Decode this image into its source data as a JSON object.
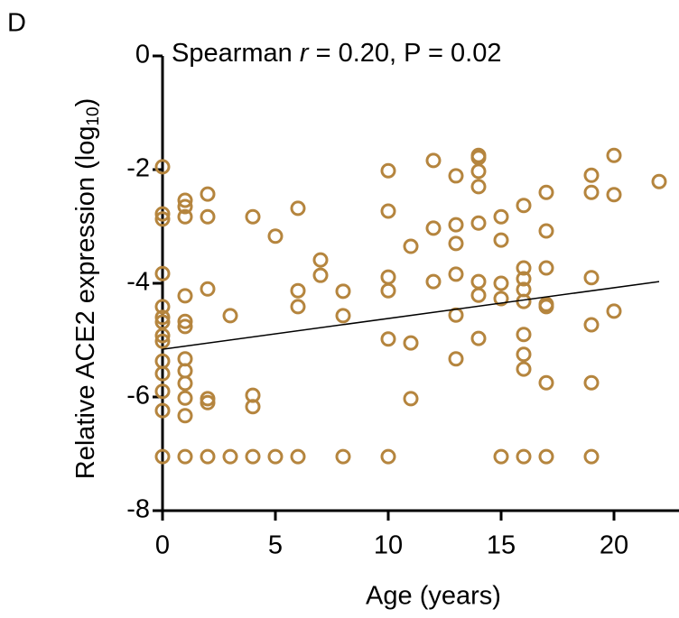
{
  "chart_data": {
    "type": "scatter",
    "panel_label": "D",
    "annotation": {
      "prefix": "Spearman ",
      "stat": "r",
      "suffix": " = 0.20, P = 0.02"
    },
    "y_label": {
      "text": "Relative ACE2 expression (log",
      "sub": "10",
      "close": ")"
    },
    "x_label": "Age (years)",
    "xlim": [
      0,
      22.9
    ],
    "ylim": [
      -8,
      0
    ],
    "xticks": [
      0,
      5,
      10,
      15,
      20
    ],
    "yticks": [
      -8,
      -6,
      -4,
      -2,
      0
    ],
    "color": "#b5853e",
    "series": [
      {
        "x": [
          0,
          0,
          0,
          0,
          0,
          0,
          0,
          0,
          0,
          0,
          0,
          0,
          0,
          0,
          1,
          1,
          1,
          1,
          1,
          1,
          1,
          1,
          1,
          1,
          1,
          1,
          2,
          2,
          2,
          2,
          2,
          2,
          3,
          3,
          4,
          4,
          4,
          4,
          5,
          5,
          6,
          6,
          6,
          6,
          7,
          7,
          8,
          8,
          8,
          10,
          10,
          10,
          10,
          10,
          10,
          11,
          11,
          11,
          12,
          12,
          12,
          13,
          13,
          13,
          13,
          13,
          13,
          14,
          14,
          14,
          14,
          14,
          14,
          14,
          14,
          15,
          15,
          15,
          15,
          15,
          16,
          16,
          16,
          16,
          16,
          16,
          16,
          16,
          16,
          17,
          17,
          17,
          17,
          17,
          17,
          17,
          19,
          19,
          19,
          19,
          19,
          19,
          20,
          20,
          20,
          22
        ],
        "y": [
          -1.95,
          -2.78,
          -2.87,
          -3.83,
          -4.41,
          -4.6,
          -4.68,
          -4.92,
          -5.02,
          -5.37,
          -5.59,
          -5.9,
          -6.24,
          -7.05,
          -2.54,
          -2.65,
          -2.83,
          -4.22,
          -4.67,
          -4.76,
          -5.33,
          -5.54,
          -5.76,
          -6.02,
          -6.33,
          -7.05,
          -2.43,
          -2.83,
          -4.1,
          -6.03,
          -6.1,
          -7.05,
          -4.57,
          -7.05,
          -2.83,
          -5.97,
          -6.17,
          -7.05,
          -3.17,
          -7.05,
          -2.68,
          -4.13,
          -4.41,
          -7.05,
          -3.59,
          -3.86,
          -4.14,
          -4.57,
          -7.05,
          -2.02,
          -2.73,
          -3.89,
          -4.13,
          -4.98,
          -7.05,
          -3.35,
          -5.05,
          -6.03,
          -1.84,
          -3.03,
          -3.97,
          -2.11,
          -2.97,
          -3.3,
          -3.84,
          -4.56,
          -5.33,
          -1.75,
          -1.79,
          -2.03,
          -2.3,
          -2.94,
          -3.97,
          -4.21,
          -4.97,
          -2.83,
          -3.24,
          -4.0,
          -4.27,
          -7.05,
          -2.63,
          -3.73,
          -3.92,
          -4.11,
          -4.32,
          -4.9,
          -5.25,
          -5.51,
          -7.05,
          -2.4,
          -3.08,
          -3.73,
          -4.37,
          -4.41,
          -5.75,
          -7.05,
          -2.1,
          -2.4,
          -3.9,
          -4.73,
          -5.75,
          -7.05,
          -1.75,
          -2.44,
          -4.49,
          -2.21
        ]
      }
    ],
    "fit": {
      "x": [
        0,
        22
      ],
      "y": [
        -5.16,
        -3.97
      ]
    }
  }
}
